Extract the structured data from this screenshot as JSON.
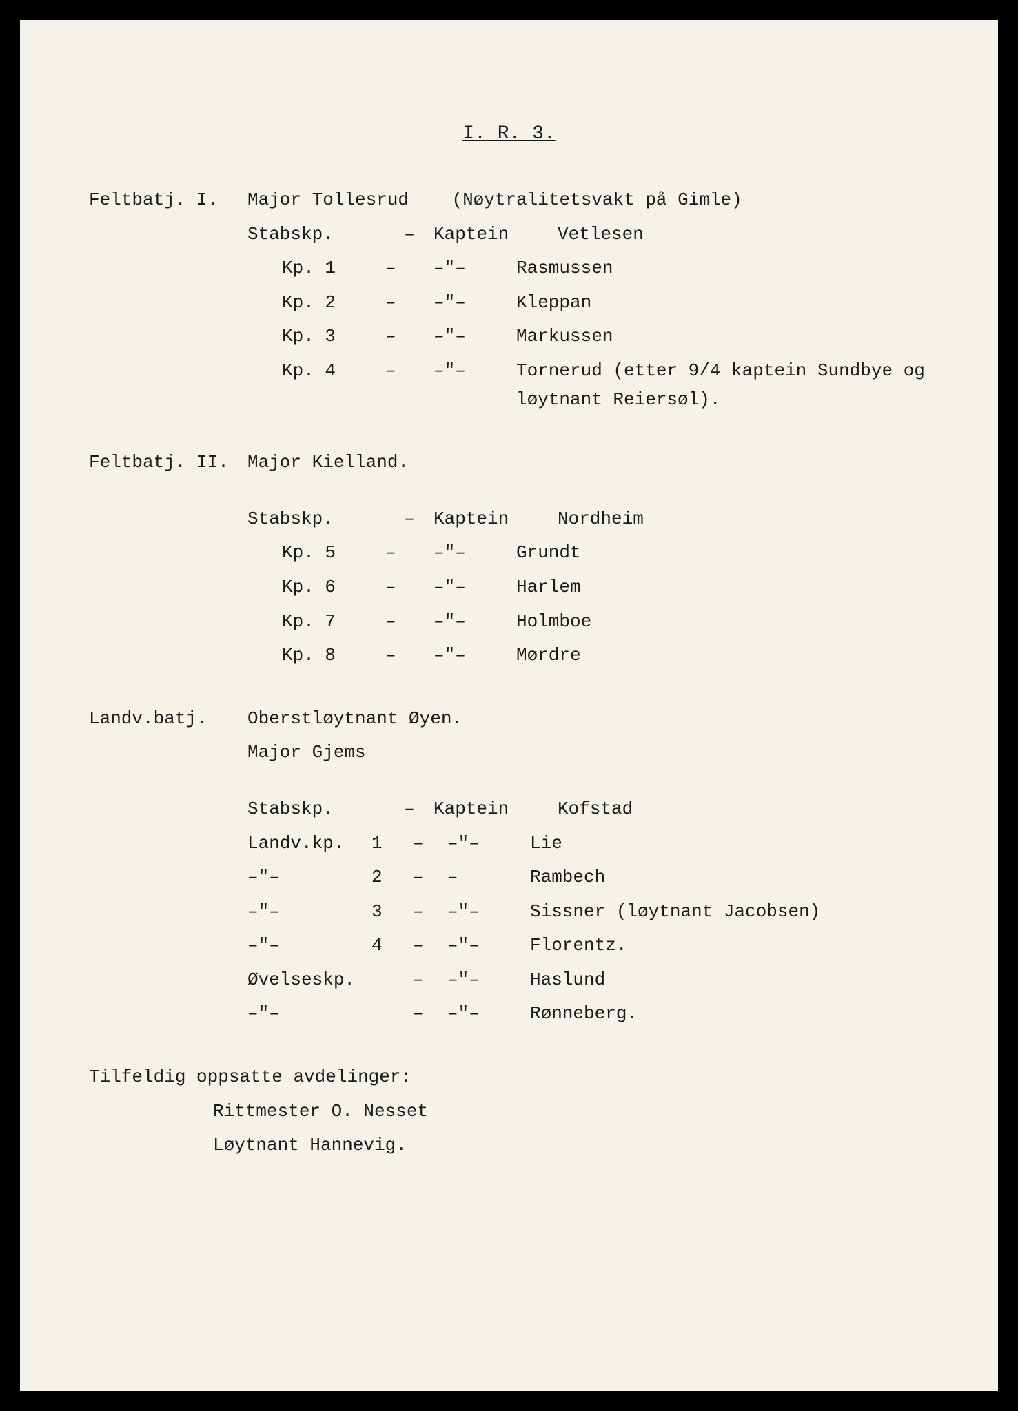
{
  "title": "I. R. 3.",
  "ditto": "–\"–",
  "dash": "–",
  "battalion1": {
    "label": "Feltbatj. I.",
    "commander": "Major Tollesrud",
    "note": "(Nøytralitetsvakt på Gimle)",
    "staff_unit": "Stabskp.",
    "staff_rank": "Kaptein",
    "staff_name": "Vetlesen",
    "companies": [
      {
        "label": "Kp. 1",
        "name": "Rasmussen"
      },
      {
        "label": "Kp. 2",
        "name": "Kleppan"
      },
      {
        "label": "Kp. 3",
        "name": "Markussen"
      },
      {
        "label": "Kp. 4",
        "name": "Tornerud (etter 9/4 kaptein Sundbye og løytnant Reiersøl)."
      }
    ]
  },
  "battalion2": {
    "label": "Feltbatj. II.",
    "commander": "Major Kielland.",
    "staff_unit": "Stabskp.",
    "staff_rank": "Kaptein",
    "staff_name": "Nordheim",
    "companies": [
      {
        "label": "Kp. 5",
        "name": "Grundt"
      },
      {
        "label": "Kp. 6",
        "name": "Harlem"
      },
      {
        "label": "Kp. 7",
        "name": "Holmboe"
      },
      {
        "label": "Kp. 8",
        "name": "Mørdre"
      }
    ]
  },
  "landvern": {
    "label": "Landv.batj.",
    "commander1": "Oberstløytnant Øyen.",
    "commander2": "Major Gjems",
    "staff_unit": "Stabskp.",
    "staff_rank": "Kaptein",
    "staff_name": "Kofstad",
    "landv_prefix": "Landv.kp.",
    "companies": [
      {
        "num": "1",
        "dash2": "–\"–",
        "name": "Lie"
      },
      {
        "num": "2",
        "dash2": "–",
        "name": "Rambech"
      },
      {
        "num": "3",
        "dash2": "–\"–",
        "name": "Sissner (løytnant Jacobsen)"
      },
      {
        "num": "4",
        "dash2": "–\"–",
        "name": "Florentz."
      }
    ],
    "exercise_unit": "Øvelseskp.",
    "exercise": [
      {
        "name": "Haslund"
      },
      {
        "name": "Rønneberg."
      }
    ]
  },
  "footer": {
    "heading": "Tilfeldig oppsatte avdelinger:",
    "line1": "Rittmester O. Nesset",
    "line2": "Løytnant Hannevig."
  }
}
